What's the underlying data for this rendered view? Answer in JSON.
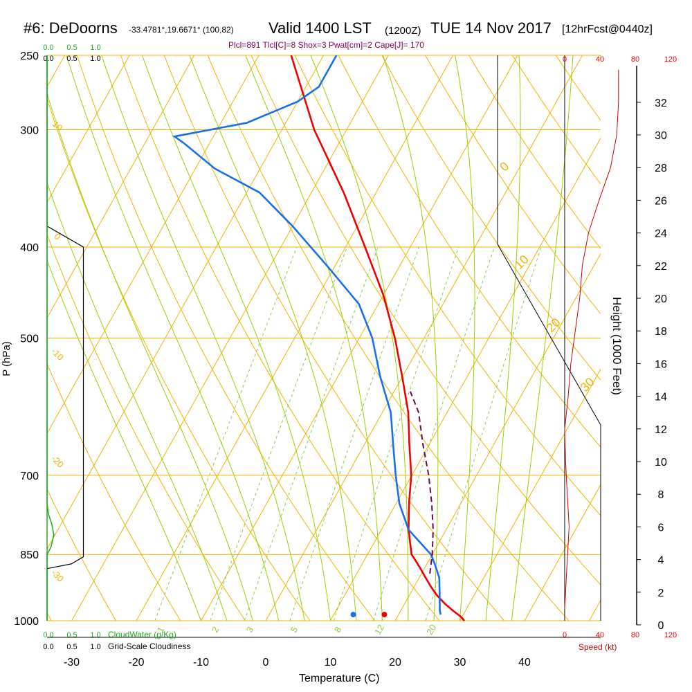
{
  "header": {
    "station": "#6: DeDoorns",
    "coords": "-33.4781°,19.6671° (100,82)",
    "valid": "Valid 1400 LST",
    "zulu": "(1200Z)",
    "date": "TUE 14 Nov 2017",
    "fcst": "[12hrFcst@0440z]",
    "params": "Plcl=891 Tlcl[C]=8 Shox=3 Pwat[cm]=2 Cape[J]= 170"
  },
  "colors": {
    "temperature": "#ee0000",
    "dewpoint": "#1a6ee8",
    "parcel": "#6a0a4a",
    "isobar": "#f0b400",
    "dry_adiabat": "#f0b400",
    "moist_adiabat": "#9ad000",
    "mixing_ratio": "#88cc44",
    "cloudwater": "#22aa22",
    "windspeed": "#cc0000"
  },
  "labels": {
    "y_axis": "P (hPa)",
    "x_axis": "Temperature (C)",
    "height_axis": "Height (1000 Feet)",
    "cloudwater": "CloudWater (g/Kg)",
    "cloudiness": "Grid-Scale Cloudiness",
    "speed": "Speed (kt)"
  },
  "chart_data": {
    "type": "line",
    "pressure_ticks": [
      250,
      300,
      400,
      500,
      700,
      850,
      1000
    ],
    "temp_ticks": [
      -30,
      -20,
      -10,
      0,
      10,
      20,
      30,
      40
    ],
    "height_ticks": [
      0,
      2,
      4,
      6,
      8,
      10,
      12,
      14,
      16,
      18,
      20,
      22,
      24,
      26,
      28,
      30,
      32
    ],
    "cloud_ticks_top": [
      "0.0",
      "0.5",
      "1.0"
    ],
    "cloudiness_ticks_top": [
      "0.0",
      "0.5",
      "1.0"
    ],
    "cloud_ticks_bottom": [
      "0.0",
      "0.5",
      "1.0"
    ],
    "cloudiness_ticks_bottom": [
      "0.0",
      "0.5",
      "1.0"
    ],
    "speed_ticks_top": [
      "0",
      "40",
      "80",
      "120"
    ],
    "speed_ticks_bottom": [
      "0",
      "40",
      "80",
      "120"
    ],
    "isotherm_labels": [
      "0",
      "10",
      "20",
      "30"
    ],
    "dry_adiabat_labels": [
      "10",
      "0",
      "-10",
      "-20",
      "-30"
    ],
    "mixing_ratio_labels": [
      "1",
      "2",
      "3",
      "5",
      "8",
      "12",
      "20"
    ],
    "series": [
      {
        "key": "temperature",
        "points": [
          [
            1000,
            30.7
          ],
          [
            990,
            29.8
          ],
          [
            975,
            28.0
          ],
          [
            960,
            26.3
          ],
          [
            940,
            24.3
          ],
          [
            920,
            22.6
          ],
          [
            900,
            21.0
          ],
          [
            880,
            19.4
          ],
          [
            860,
            17.7
          ],
          [
            850,
            16.8
          ],
          [
            800,
            14.2
          ],
          [
            750,
            12.0
          ],
          [
            700,
            9.9
          ],
          [
            650,
            7.0
          ],
          [
            600,
            4.0
          ],
          [
            550,
            0.0
          ],
          [
            500,
            -4.5
          ],
          [
            450,
            -10.0
          ],
          [
            400,
            -17.0
          ],
          [
            350,
            -25.0
          ],
          [
            300,
            -35.0
          ],
          [
            250,
            -45.0
          ]
        ]
      },
      {
        "key": "dewpoint",
        "points": [
          [
            985,
            26.5
          ],
          [
            975,
            26.0
          ],
          [
            940,
            24.7
          ],
          [
            900,
            23.1
          ],
          [
            870,
            21.2
          ],
          [
            850,
            19.8
          ],
          [
            800,
            14.2
          ],
          [
            750,
            10.5
          ],
          [
            700,
            7.5
          ],
          [
            650,
            4.5
          ],
          [
            600,
            1.3
          ],
          [
            550,
            -3.4
          ],
          [
            500,
            -8.0
          ],
          [
            460,
            -13.0
          ],
          [
            420,
            -21.0
          ],
          [
            380,
            -30.0
          ],
          [
            350,
            -38.0
          ],
          [
            330,
            -47.0
          ],
          [
            310,
            -54.0
          ],
          [
            305,
            -56.0
          ],
          [
            295,
            -46.0
          ],
          [
            280,
            -40.0
          ],
          [
            270,
            -38.0
          ],
          [
            250,
            -38.0
          ]
        ]
      },
      {
        "key": "parcel",
        "points": [
          [
            891,
            21.3
          ],
          [
            850,
            20.0
          ],
          [
            800,
            18.0
          ],
          [
            750,
            15.5
          ],
          [
            700,
            12.6
          ],
          [
            650,
            9.1
          ],
          [
            600,
            5.6
          ],
          [
            570,
            2.5
          ]
        ]
      }
    ],
    "surface_temperature": 17.8,
    "surface_dewpoint": 13.0,
    "surface_pressure": 985,
    "cloudwater_profile": [
      [
        1000,
        0.0
      ],
      [
        850,
        0.0
      ],
      [
        835,
        0.08
      ],
      [
        810,
        0.14
      ],
      [
        790,
        0.1
      ],
      [
        770,
        0.03
      ],
      [
        750,
        0.0
      ],
      [
        250,
        0.0
      ]
    ],
    "cloudiness_profile": [
      [
        1000,
        0.0
      ],
      [
        880,
        0.0
      ],
      [
        870,
        0.5
      ],
      [
        855,
        0.75
      ],
      [
        850,
        0.75
      ],
      [
        420,
        0.75
      ],
      [
        400,
        0.75
      ],
      [
        380,
        0.0
      ],
      [
        250,
        0.0
      ]
    ],
    "wind_speed_profile": [
      [
        1,
        0
      ],
      [
        2,
        1
      ],
      [
        3,
        2
      ],
      [
        4,
        3
      ],
      [
        5,
        4
      ],
      [
        6,
        5
      ],
      [
        7,
        4
      ],
      [
        8,
        3
      ],
      [
        9,
        2
      ],
      [
        10,
        1
      ],
      [
        12,
        0
      ],
      [
        14,
        4
      ],
      [
        16,
        7
      ],
      [
        18,
        12
      ],
      [
        20,
        17
      ],
      [
        22,
        20
      ],
      [
        24,
        27
      ],
      [
        26,
        39
      ],
      [
        28,
        52
      ],
      [
        30,
        59
      ],
      [
        32,
        61
      ],
      [
        34,
        61
      ]
    ]
  }
}
